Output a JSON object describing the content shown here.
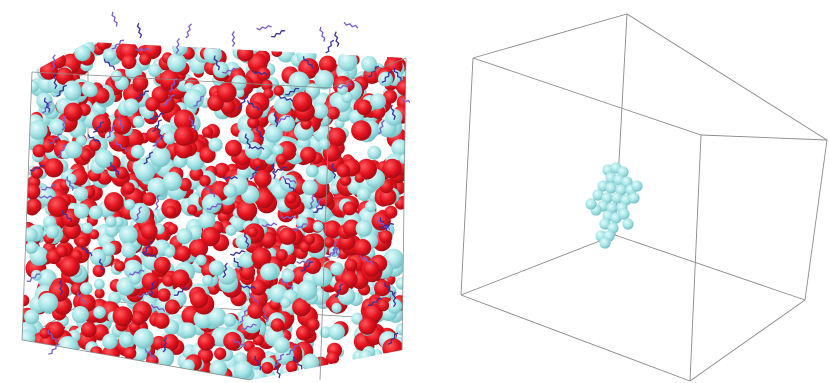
{
  "figure": {
    "panels": [
      {
        "id": "full-system",
        "subject": "dense-molecular-packing-in-periodic-box",
        "box_visible": true
      },
      {
        "id": "isolated-cluster",
        "subject": "single-molecular-cluster-in-periodic-box",
        "box_visible": true
      }
    ]
  },
  "colors": {
    "background": "#ffffff",
    "red_species": "#e3121d",
    "red_shadow": "#9c0a12",
    "cyan_species": "#a6e4e6",
    "cyan_shadow": "#6fbcc1",
    "chain_species": "#5a4bb3",
    "box_line": "#8a8a8a"
  }
}
